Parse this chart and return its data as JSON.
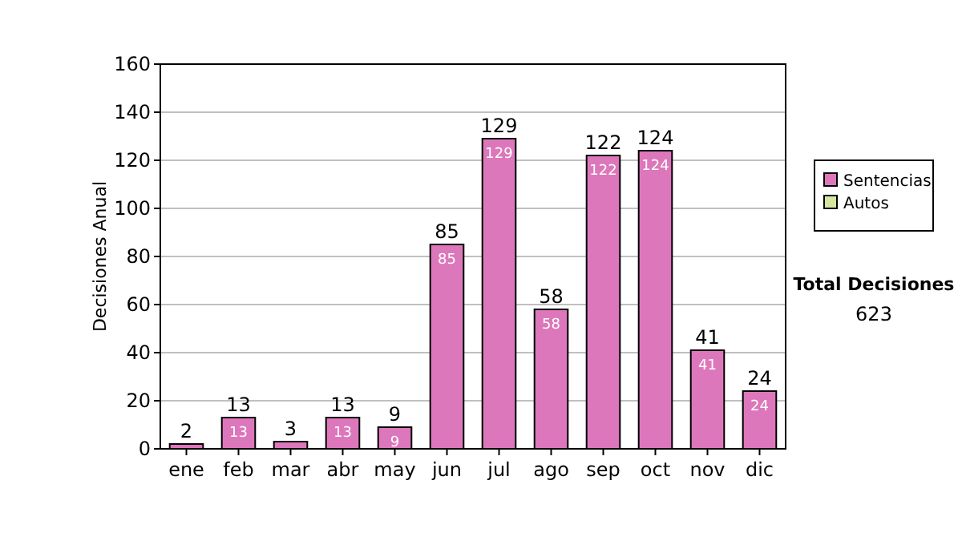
{
  "chart_data": {
    "type": "bar",
    "ylabel": "Decisiones Anual",
    "categories": [
      "ene",
      "feb",
      "mar",
      "abr",
      "may",
      "jun",
      "jul",
      "ago",
      "sep",
      "oct",
      "nov",
      "dic"
    ],
    "stacked": true,
    "series": [
      {
        "name": "Sentencias",
        "color": "#dd77bb",
        "values": [
          2,
          13,
          3,
          13,
          9,
          85,
          129,
          58,
          122,
          124,
          41,
          24
        ],
        "value_labels": [
          null,
          "13",
          null,
          "13",
          "9",
          "85",
          "129",
          "58",
          "122",
          "124",
          "41",
          "24"
        ]
      },
      {
        "name": "Autos",
        "color": "#d4e6a0",
        "values": [
          0,
          0,
          0,
          0,
          0,
          0,
          0,
          0,
          0,
          0,
          0,
          0
        ]
      }
    ],
    "totals": [
      "2",
      "13",
      "3",
      "13",
      "9",
      "85",
      "129",
      "58",
      "122",
      "124",
      "41",
      "24"
    ],
    "ylim": [
      0,
      160
    ],
    "yticks": [
      0,
      20,
      40,
      60,
      80,
      100,
      120,
      140,
      160
    ],
    "grid": "y",
    "legend": "right",
    "annotations": [
      "Total Decisiones",
      "623"
    ]
  }
}
